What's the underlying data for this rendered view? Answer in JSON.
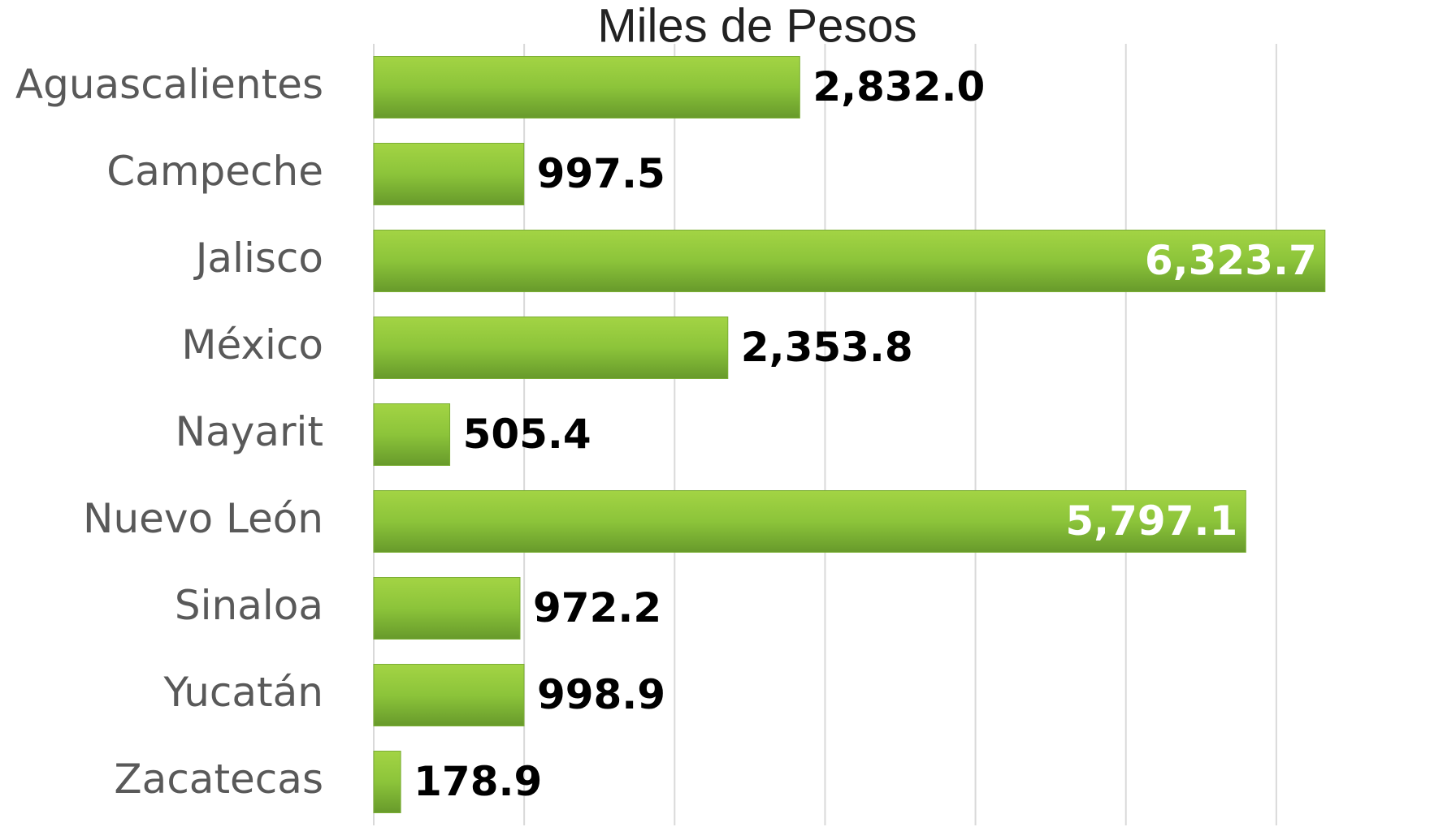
{
  "chart_data": {
    "type": "bar",
    "orientation": "horizontal",
    "title": "Miles de Pesos",
    "categories": [
      "Aguascalientes",
      "Campeche",
      "Jalisco",
      "México",
      "Nayarit",
      "Nuevo León",
      "Sinaloa",
      "Yucatán",
      "Zacatecas"
    ],
    "values": [
      2832.0,
      997.5,
      6323.7,
      2353.8,
      505.4,
      5797.1,
      972.2,
      998.9,
      178.9
    ],
    "value_labels": [
      "2,832.0",
      "997.5",
      "6,323.7",
      "2,353.8",
      "505.4",
      "5,797.1",
      "972.2",
      "998.9",
      "178.9"
    ],
    "color": "#8cc43a",
    "xlim": [
      0,
      7000
    ],
    "xticks": [
      0,
      1000,
      2000,
      3000,
      4000,
      5000,
      6000
    ],
    "grid": true
  }
}
